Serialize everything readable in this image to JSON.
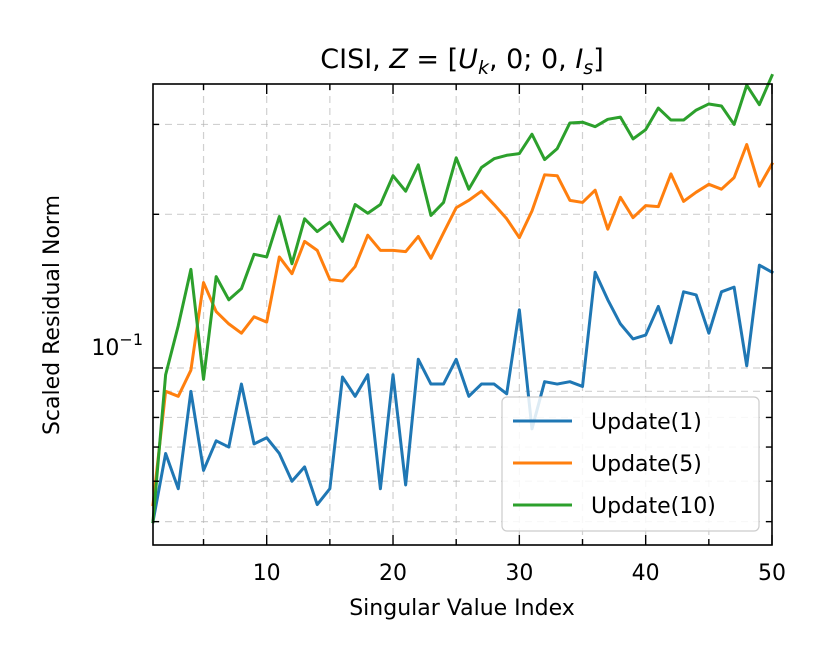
{
  "chart_data": {
    "type": "line",
    "title_prefix": "CISI, ",
    "title_math": {
      "Z": "Z",
      "eq": " = [",
      "U": "U",
      "U_sub": "k",
      "mid": ", 0; 0, ",
      "I": "I",
      "I_sub": "s",
      "end": "]"
    },
    "xlabel": "Singular Value Index",
    "ylabel": "Scaled Residual Norm",
    "xlim": [
      1,
      50
    ],
    "ylim_log": [
      0.045,
      0.36
    ],
    "y_scale": "log",
    "x_ticks": [
      10,
      20,
      30,
      40,
      50
    ],
    "y_major_tick": {
      "base": "10",
      "exp": "−1",
      "value": 0.1
    },
    "grid": true,
    "legend_position": "lower-right",
    "colors": {
      "update1": "#1f77b4",
      "update5": "#ff7f0e",
      "update10": "#2ca02c"
    },
    "x": [
      1,
      2,
      3,
      4,
      5,
      6,
      7,
      8,
      9,
      10,
      11,
      12,
      13,
      14,
      15,
      16,
      17,
      18,
      19,
      20,
      21,
      22,
      23,
      24,
      25,
      26,
      27,
      28,
      29,
      30,
      31,
      32,
      33,
      34,
      35,
      36,
      37,
      38,
      39,
      40,
      41,
      42,
      43,
      44,
      45,
      46,
      47,
      48,
      49,
      50
    ],
    "series": [
      {
        "name": "Update(1)",
        "color": "#1f77b4",
        "values": [
          0.05,
          0.068,
          0.058,
          0.09,
          0.063,
          0.072,
          0.07,
          0.093,
          0.071,
          0.073,
          0.068,
          0.06,
          0.064,
          0.054,
          0.058,
          0.096,
          0.088,
          0.097,
          0.058,
          0.097,
          0.059,
          0.104,
          0.093,
          0.093,
          0.104,
          0.088,
          0.093,
          0.093,
          0.089,
          0.13,
          0.076,
          0.094,
          0.093,
          0.094,
          0.092,
          0.154,
          0.136,
          0.122,
          0.114,
          0.116,
          0.132,
          0.112,
          0.141,
          0.139,
          0.117,
          0.141,
          0.144,
          0.101,
          0.159,
          0.154
        ]
      },
      {
        "name": "Update(5)",
        "color": "#ff7f0e",
        "values": [
          0.054,
          0.09,
          0.088,
          0.099,
          0.147,
          0.129,
          0.122,
          0.117,
          0.126,
          0.123,
          0.165,
          0.153,
          0.177,
          0.17,
          0.149,
          0.148,
          0.158,
          0.182,
          0.17,
          0.17,
          0.169,
          0.181,
          0.164,
          0.184,
          0.206,
          0.213,
          0.222,
          0.209,
          0.196,
          0.18,
          0.203,
          0.239,
          0.238,
          0.213,
          0.211,
          0.223,
          0.187,
          0.216,
          0.197,
          0.208,
          0.207,
          0.24,
          0.212,
          0.221,
          0.229,
          0.224,
          0.236,
          0.274,
          0.227,
          0.251
        ]
      },
      {
        "name": "Update(10)",
        "color": "#2ca02c",
        "values": [
          0.05,
          0.097,
          0.121,
          0.156,
          0.095,
          0.151,
          0.136,
          0.143,
          0.167,
          0.165,
          0.198,
          0.16,
          0.196,
          0.185,
          0.193,
          0.177,
          0.209,
          0.201,
          0.209,
          0.238,
          0.222,
          0.25,
          0.199,
          0.211,
          0.258,
          0.224,
          0.247,
          0.257,
          0.261,
          0.263,
          0.287,
          0.256,
          0.269,
          0.302,
          0.303,
          0.297,
          0.307,
          0.31,
          0.281,
          0.293,
          0.323,
          0.306,
          0.306,
          0.32,
          0.329,
          0.326,
          0.3,
          0.358,
          0.328,
          0.374
        ]
      }
    ]
  }
}
